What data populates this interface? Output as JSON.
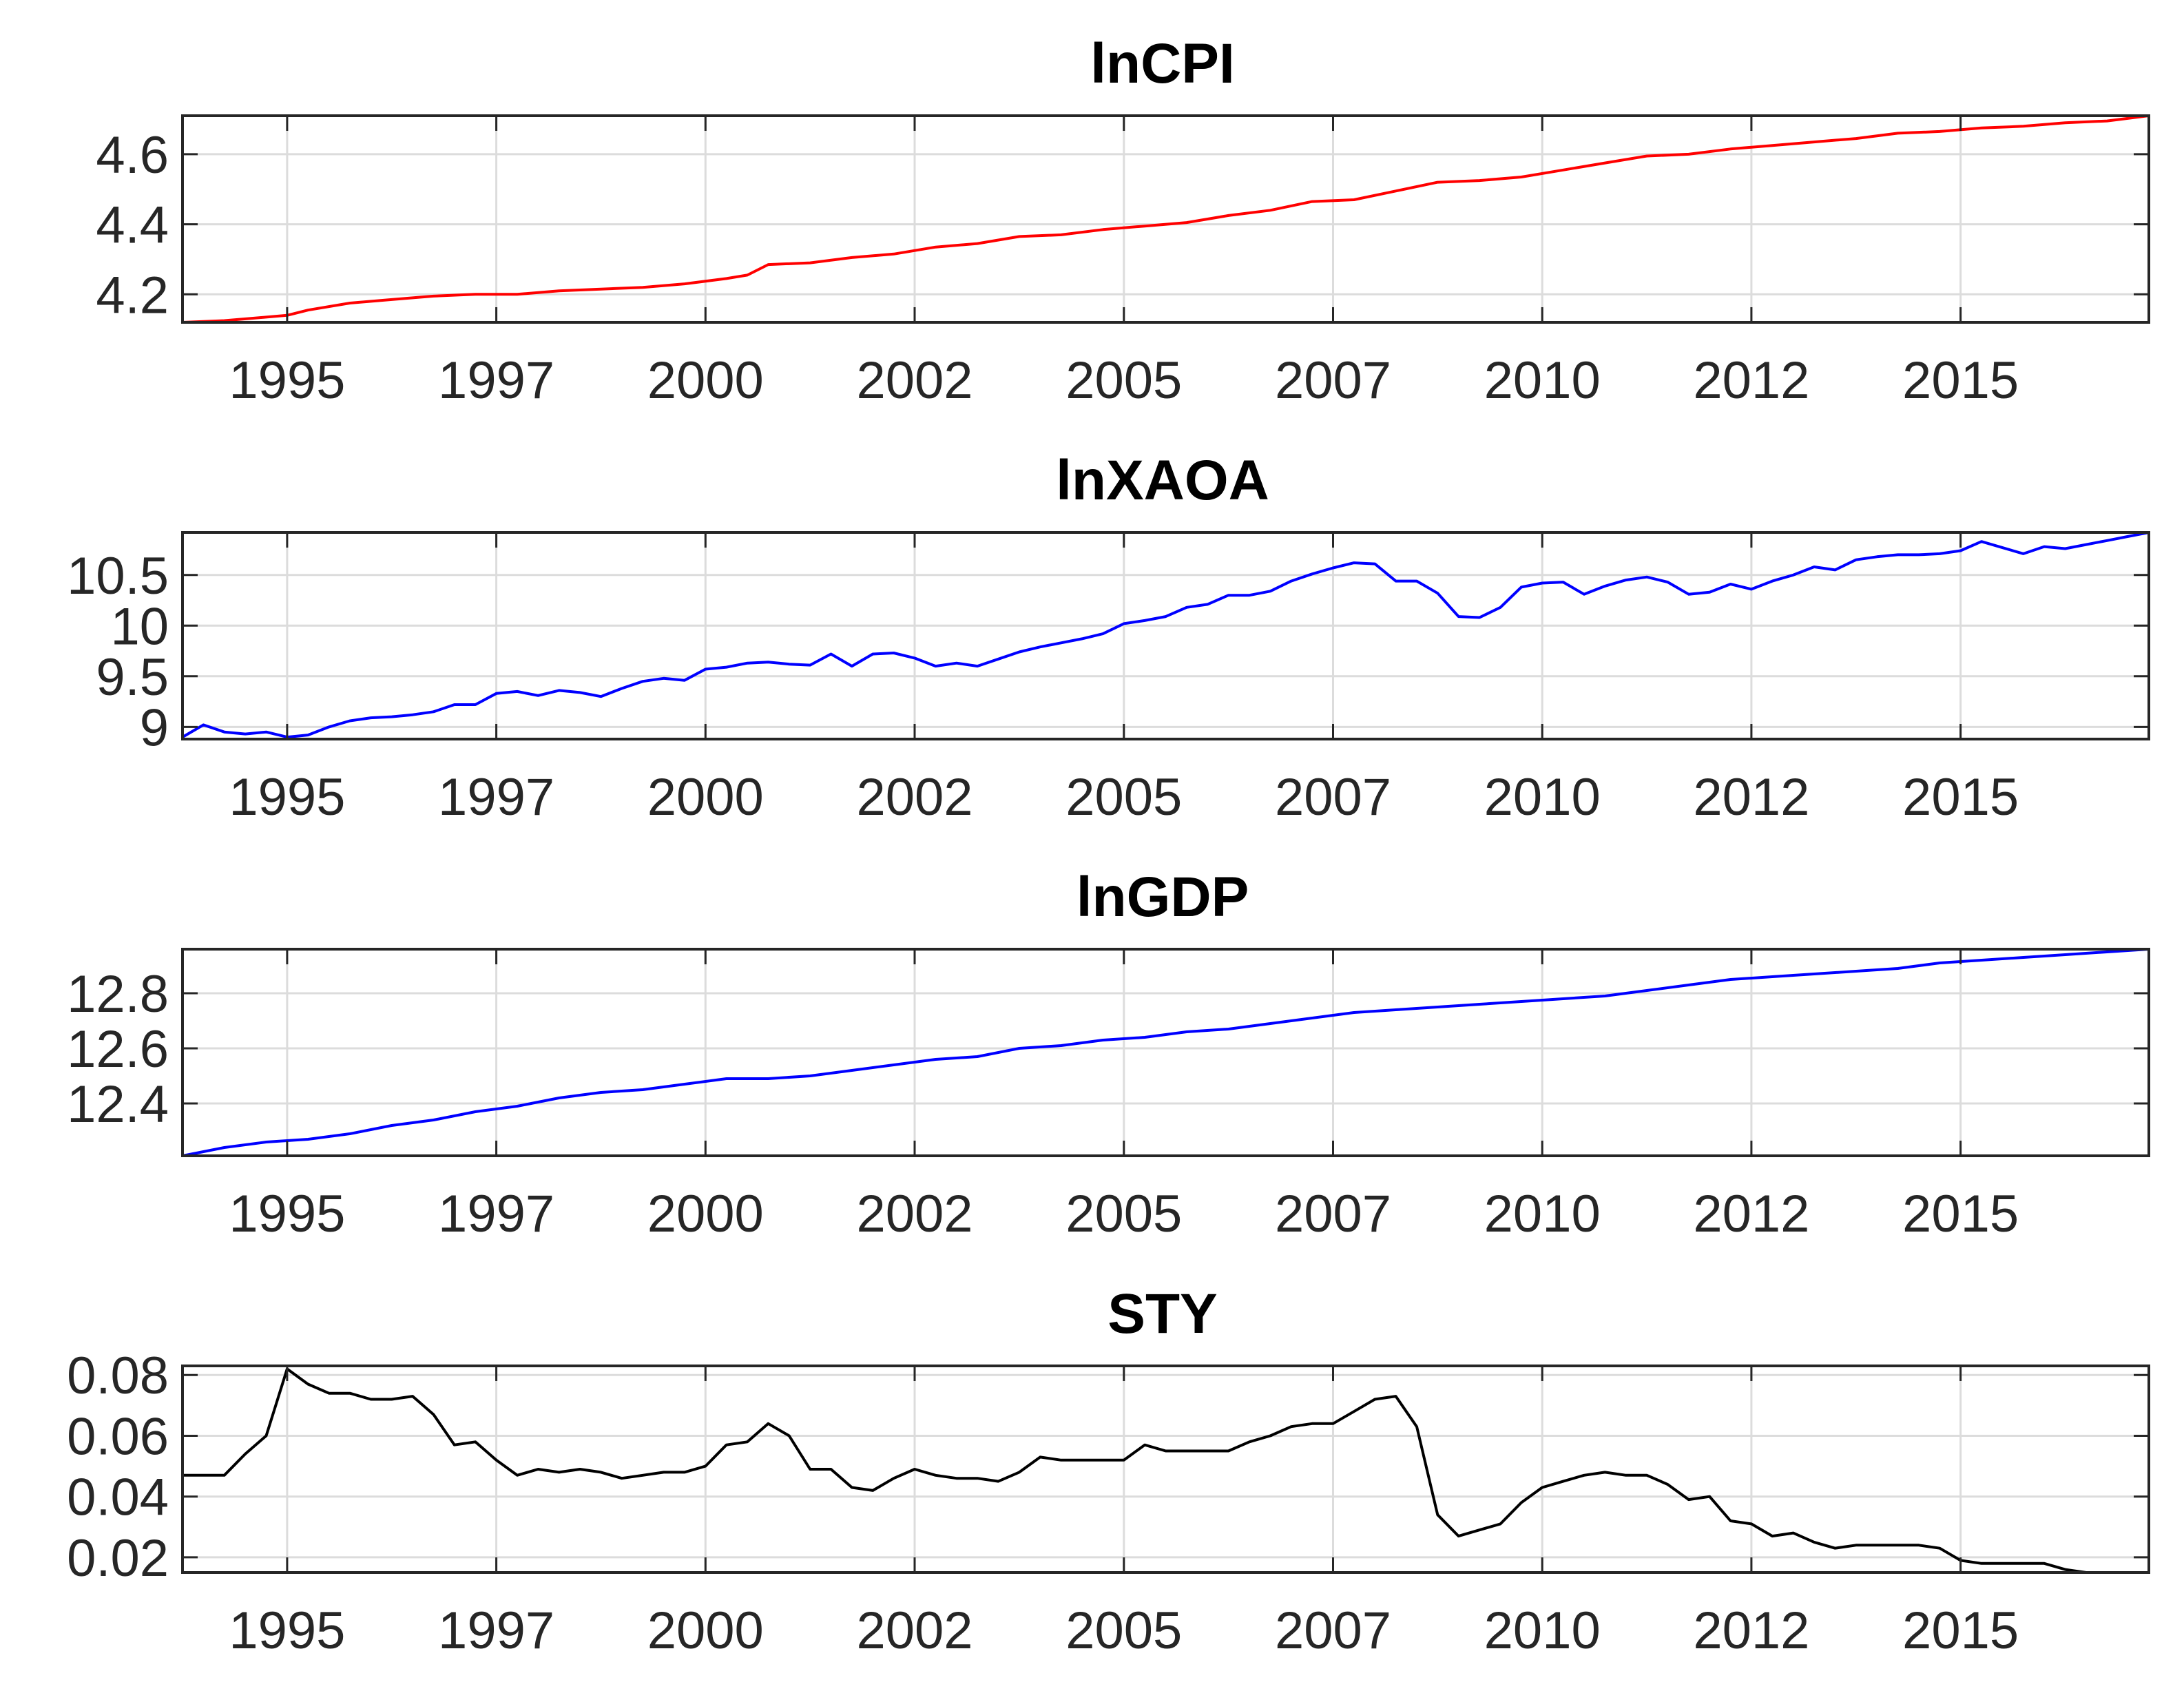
{
  "chart_data": [
    {
      "type": "line",
      "title": "lnCPI",
      "color": "#ff0000",
      "xlim": [
        1994.0,
        2017.5
      ],
      "ylim": [
        4.12,
        4.71
      ],
      "xticks": [
        1995.25,
        1997.75,
        2000.25,
        2002.75,
        2005.25,
        2007.75,
        2010.25,
        2012.75,
        2015.25
      ],
      "xtick_labels": [
        "1995",
        "1997",
        "2000",
        "2002",
        "2005",
        "2007",
        "2010",
        "2012",
        "2015"
      ],
      "yticks": [
        4.2,
        4.4,
        4.6
      ],
      "ytick_labels": [
        "4.2",
        "4.4",
        "4.6"
      ],
      "x": [
        1994.0,
        1994.5,
        1995.0,
        1995.25,
        1995.5,
        1996.0,
        1996.5,
        1997.0,
        1997.5,
        1998.0,
        1998.5,
        1999.0,
        1999.5,
        2000.0,
        2000.5,
        2000.75,
        2001.0,
        2001.5,
        2002.0,
        2002.5,
        2003.0,
        2003.5,
        2004.0,
        2004.5,
        2005.0,
        2005.5,
        2006.0,
        2006.5,
        2007.0,
        2007.5,
        2008.0,
        2008.5,
        2009.0,
        2009.5,
        2010.0,
        2010.5,
        2011.0,
        2011.5,
        2012.0,
        2012.5,
        2013.0,
        2013.5,
        2014.0,
        2014.5,
        2015.0,
        2015.5,
        2016.0,
        2016.5,
        2017.0,
        2017.5
      ],
      "y": [
        4.12,
        4.125,
        4.135,
        4.14,
        4.155,
        4.175,
        4.185,
        4.195,
        4.2,
        4.2,
        4.21,
        4.215,
        4.22,
        4.23,
        4.245,
        4.255,
        4.285,
        4.29,
        4.305,
        4.315,
        4.335,
        4.345,
        4.365,
        4.37,
        4.385,
        4.395,
        4.405,
        4.425,
        4.44,
        4.465,
        4.47,
        4.495,
        4.52,
        4.525,
        4.535,
        4.555,
        4.575,
        4.595,
        4.6,
        4.615,
        4.625,
        4.635,
        4.645,
        4.66,
        4.665,
        4.675,
        4.68,
        4.69,
        4.695,
        4.71
      ]
    },
    {
      "type": "line",
      "title": "lnXAOA",
      "color": "#0000ff",
      "xlim": [
        1994.0,
        2017.5
      ],
      "ylim": [
        8.88,
        10.92
      ],
      "xticks": [
        1995.25,
        1997.75,
        2000.25,
        2002.75,
        2005.25,
        2007.75,
        2010.25,
        2012.75,
        2015.25
      ],
      "xtick_labels": [
        "1995",
        "1997",
        "2000",
        "2002",
        "2005",
        "2007",
        "2010",
        "2012",
        "2015"
      ],
      "yticks": [
        9,
        9.5,
        10,
        10.5
      ],
      "ytick_labels": [
        "9",
        "9.5",
        "10",
        "10.5"
      ],
      "x": [
        1994.0,
        1994.25,
        1994.5,
        1994.75,
        1995.0,
        1995.25,
        1995.5,
        1995.75,
        1996.0,
        1996.25,
        1996.5,
        1996.75,
        1997.0,
        1997.25,
        1997.5,
        1997.75,
        1998.0,
        1998.25,
        1998.5,
        1998.75,
        1999.0,
        1999.25,
        1999.5,
        1999.75,
        2000.0,
        2000.25,
        2000.5,
        2000.75,
        2001.0,
        2001.25,
        2001.5,
        2001.75,
        2002.0,
        2002.25,
        2002.5,
        2002.75,
        2003.0,
        2003.25,
        2003.5,
        2003.75,
        2004.0,
        2004.25,
        2004.5,
        2004.75,
        2005.0,
        2005.25,
        2005.5,
        2005.75,
        2006.0,
        2006.25,
        2006.5,
        2006.75,
        2007.0,
        2007.25,
        2007.5,
        2007.75,
        2008.0,
        2008.25,
        2008.5,
        2008.75,
        2009.0,
        2009.25,
        2009.5,
        2009.75,
        2010.0,
        2010.25,
        2010.5,
        2010.75,
        2011.0,
        2011.25,
        2011.5,
        2011.75,
        2012.0,
        2012.25,
        2012.5,
        2012.75,
        2013.0,
        2013.25,
        2013.5,
        2013.75,
        2014.0,
        2014.25,
        2014.5,
        2014.75,
        2015.0,
        2015.25,
        2015.5,
        2015.75,
        2016.0,
        2016.25,
        2016.5,
        2016.75,
        2017.0,
        2017.25,
        2017.5
      ],
      "y": [
        8.9,
        9.02,
        8.95,
        8.93,
        8.95,
        8.9,
        8.92,
        9.0,
        9.06,
        9.09,
        9.1,
        9.12,
        9.15,
        9.22,
        9.22,
        9.33,
        9.35,
        9.31,
        9.36,
        9.34,
        9.3,
        9.38,
        9.45,
        9.48,
        9.46,
        9.57,
        9.59,
        9.63,
        9.64,
        9.62,
        9.61,
        9.72,
        9.6,
        9.72,
        9.73,
        9.68,
        9.6,
        9.63,
        9.6,
        9.67,
        9.74,
        9.79,
        9.83,
        9.87,
        9.92,
        10.02,
        10.05,
        10.09,
        10.18,
        10.21,
        10.3,
        10.3,
        10.34,
        10.44,
        10.51,
        10.57,
        10.62,
        10.61,
        10.44,
        10.44,
        10.32,
        10.09,
        10.08,
        10.18,
        10.38,
        10.42,
        10.43,
        10.31,
        10.39,
        10.45,
        10.48,
        10.43,
        10.31,
        10.33,
        10.41,
        10.36,
        10.44,
        10.5,
        10.58,
        10.55,
        10.65,
        10.68,
        10.7,
        10.7,
        10.71,
        10.74,
        10.83,
        10.77,
        10.71,
        10.78,
        10.76,
        10.8,
        10.84,
        10.88,
        10.92
      ]
    },
    {
      "type": "line",
      "title": "lnGDP",
      "color": "#0000ff",
      "xlim": [
        1994.0,
        2017.5
      ],
      "ylim": [
        12.21,
        12.96
      ],
      "xticks": [
        1995.25,
        1997.75,
        2000.25,
        2002.75,
        2005.25,
        2007.75,
        2010.25,
        2012.75,
        2015.25
      ],
      "xtick_labels": [
        "1995",
        "1997",
        "2000",
        "2002",
        "2005",
        "2007",
        "2010",
        "2012",
        "2015"
      ],
      "yticks": [
        12.4,
        12.6,
        12.8
      ],
      "ytick_labels": [
        "12.4",
        "12.6",
        "12.8"
      ],
      "x": [
        1994.0,
        1994.5,
        1995.0,
        1995.5,
        1996.0,
        1996.5,
        1997.0,
        1997.5,
        1998.0,
        1998.5,
        1999.0,
        1999.5,
        2000.0,
        2000.5,
        2001.0,
        2001.5,
        2002.0,
        2002.5,
        2003.0,
        2003.5,
        2004.0,
        2004.5,
        2005.0,
        2005.5,
        2006.0,
        2006.5,
        2007.0,
        2007.5,
        2008.0,
        2008.5,
        2009.0,
        2009.5,
        2010.0,
        2010.5,
        2011.0,
        2011.5,
        2012.0,
        2012.5,
        2013.0,
        2013.5,
        2014.0,
        2014.5,
        2015.0,
        2015.5,
        2016.0,
        2016.5,
        2017.0,
        2017.5
      ],
      "y": [
        12.21,
        12.24,
        12.26,
        12.27,
        12.29,
        12.32,
        12.34,
        12.37,
        12.39,
        12.42,
        12.44,
        12.45,
        12.47,
        12.49,
        12.49,
        12.5,
        12.52,
        12.54,
        12.56,
        12.57,
        12.6,
        12.61,
        12.63,
        12.64,
        12.66,
        12.67,
        12.69,
        12.71,
        12.73,
        12.74,
        12.75,
        12.76,
        12.77,
        12.78,
        12.79,
        12.81,
        12.83,
        12.85,
        12.86,
        12.87,
        12.88,
        12.89,
        12.91,
        12.92,
        12.93,
        12.94,
        12.95,
        12.96
      ]
    },
    {
      "type": "line",
      "title": "STY",
      "color": "#000000",
      "xlim": [
        1994.0,
        2017.5
      ],
      "ylim": [
        0.015,
        0.083
      ],
      "xticks": [
        1995.25,
        1997.75,
        2000.25,
        2002.75,
        2005.25,
        2007.75,
        2010.25,
        2012.75,
        2015.25
      ],
      "xtick_labels": [
        "1995",
        "1997",
        "2000",
        "2002",
        "2005",
        "2007",
        "2010",
        "2012",
        "2015"
      ],
      "yticks": [
        0.02,
        0.04,
        0.06,
        0.08
      ],
      "ytick_labels": [
        "0.02",
        "0.04",
        "0.06",
        "0.08"
      ],
      "x": [
        1994.0,
        1994.5,
        1994.75,
        1995.0,
        1995.25,
        1995.5,
        1995.75,
        1996.0,
        1996.25,
        1996.5,
        1996.75,
        1997.0,
        1997.25,
        1997.5,
        1997.75,
        1998.0,
        1998.25,
        1998.5,
        1998.75,
        1999.0,
        1999.25,
        1999.5,
        1999.75,
        2000.0,
        2000.25,
        2000.5,
        2000.75,
        2001.0,
        2001.25,
        2001.5,
        2001.75,
        2002.0,
        2002.25,
        2002.5,
        2002.75,
        2003.0,
        2003.25,
        2003.5,
        2003.75,
        2004.0,
        2004.25,
        2004.5,
        2004.75,
        2005.0,
        2005.25,
        2005.5,
        2005.75,
        2006.0,
        2006.25,
        2006.5,
        2006.75,
        2007.0,
        2007.25,
        2007.5,
        2007.75,
        2008.0,
        2008.25,
        2008.5,
        2008.75,
        2009.0,
        2009.25,
        2009.5,
        2009.75,
        2010.0,
        2010.25,
        2010.5,
        2010.75,
        2011.0,
        2011.25,
        2011.5,
        2011.75,
        2012.0,
        2012.25,
        2012.5,
        2012.75,
        2013.0,
        2013.25,
        2013.5,
        2013.75,
        2014.0,
        2014.25,
        2014.5,
        2014.75,
        2015.0,
        2015.25,
        2015.5,
        2015.75,
        2016.0,
        2016.25,
        2016.5,
        2016.75,
        2017.0,
        2017.5
      ],
      "y": [
        0.047,
        0.047,
        0.054,
        0.06,
        0.082,
        0.077,
        0.074,
        0.074,
        0.072,
        0.072,
        0.073,
        0.067,
        0.057,
        0.058,
        0.052,
        0.047,
        0.049,
        0.048,
        0.049,
        0.048,
        0.046,
        0.047,
        0.048,
        0.048,
        0.05,
        0.057,
        0.058,
        0.064,
        0.06,
        0.049,
        0.049,
        0.043,
        0.042,
        0.046,
        0.049,
        0.047,
        0.046,
        0.046,
        0.045,
        0.048,
        0.053,
        0.052,
        0.052,
        0.052,
        0.052,
        0.057,
        0.055,
        0.055,
        0.055,
        0.055,
        0.058,
        0.06,
        0.063,
        0.064,
        0.064,
        0.068,
        0.072,
        0.073,
        0.063,
        0.034,
        0.027,
        0.029,
        0.031,
        0.038,
        0.043,
        0.045,
        0.047,
        0.048,
        0.047,
        0.047,
        0.044,
        0.039,
        0.04,
        0.032,
        0.031,
        0.027,
        0.028,
        0.025,
        0.023,
        0.024,
        0.024,
        0.024,
        0.024,
        0.023,
        0.019,
        0.018,
        0.018,
        0.018,
        0.018,
        0.016,
        0.015,
        0.015,
        0.015
      ]
    }
  ]
}
